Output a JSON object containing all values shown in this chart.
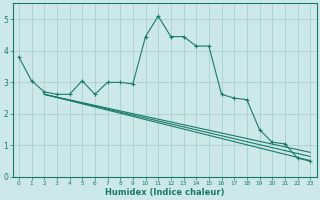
{
  "xlabel": "Humidex (Indice chaleur)",
  "bg_color": "#cce8e8",
  "grid_color": "#aacfcf",
  "line_color": "#1a7a6a",
  "xlim": [
    -0.5,
    23.5
  ],
  "ylim": [
    0,
    5.5
  ],
  "xticks": [
    0,
    1,
    2,
    3,
    4,
    5,
    6,
    7,
    8,
    9,
    10,
    11,
    12,
    13,
    14,
    15,
    16,
    17,
    18,
    19,
    20,
    21,
    22,
    23
  ],
  "yticks": [
    0,
    1,
    2,
    3,
    4,
    5
  ],
  "line1_x": [
    0,
    1,
    2,
    3,
    4,
    5,
    6,
    7,
    8,
    9,
    10,
    11,
    12,
    13,
    14,
    15,
    16,
    17,
    18,
    19,
    20,
    21,
    22,
    23
  ],
  "line1_y": [
    3.8,
    3.05,
    2.7,
    2.62,
    2.62,
    3.05,
    2.62,
    3.0,
    3.0,
    2.95,
    4.45,
    5.1,
    4.45,
    4.45,
    4.15,
    4.15,
    2.62,
    2.5,
    2.45,
    1.5,
    1.1,
    1.05,
    0.6,
    0.5
  ],
  "line2_x": [
    2,
    23
  ],
  "line2_y": [
    2.62,
    0.78
  ],
  "line3_x": [
    2,
    23
  ],
  "line3_y": [
    2.62,
    0.65
  ],
  "line4_x": [
    2,
    23
  ],
  "line4_y": [
    2.62,
    0.52
  ]
}
